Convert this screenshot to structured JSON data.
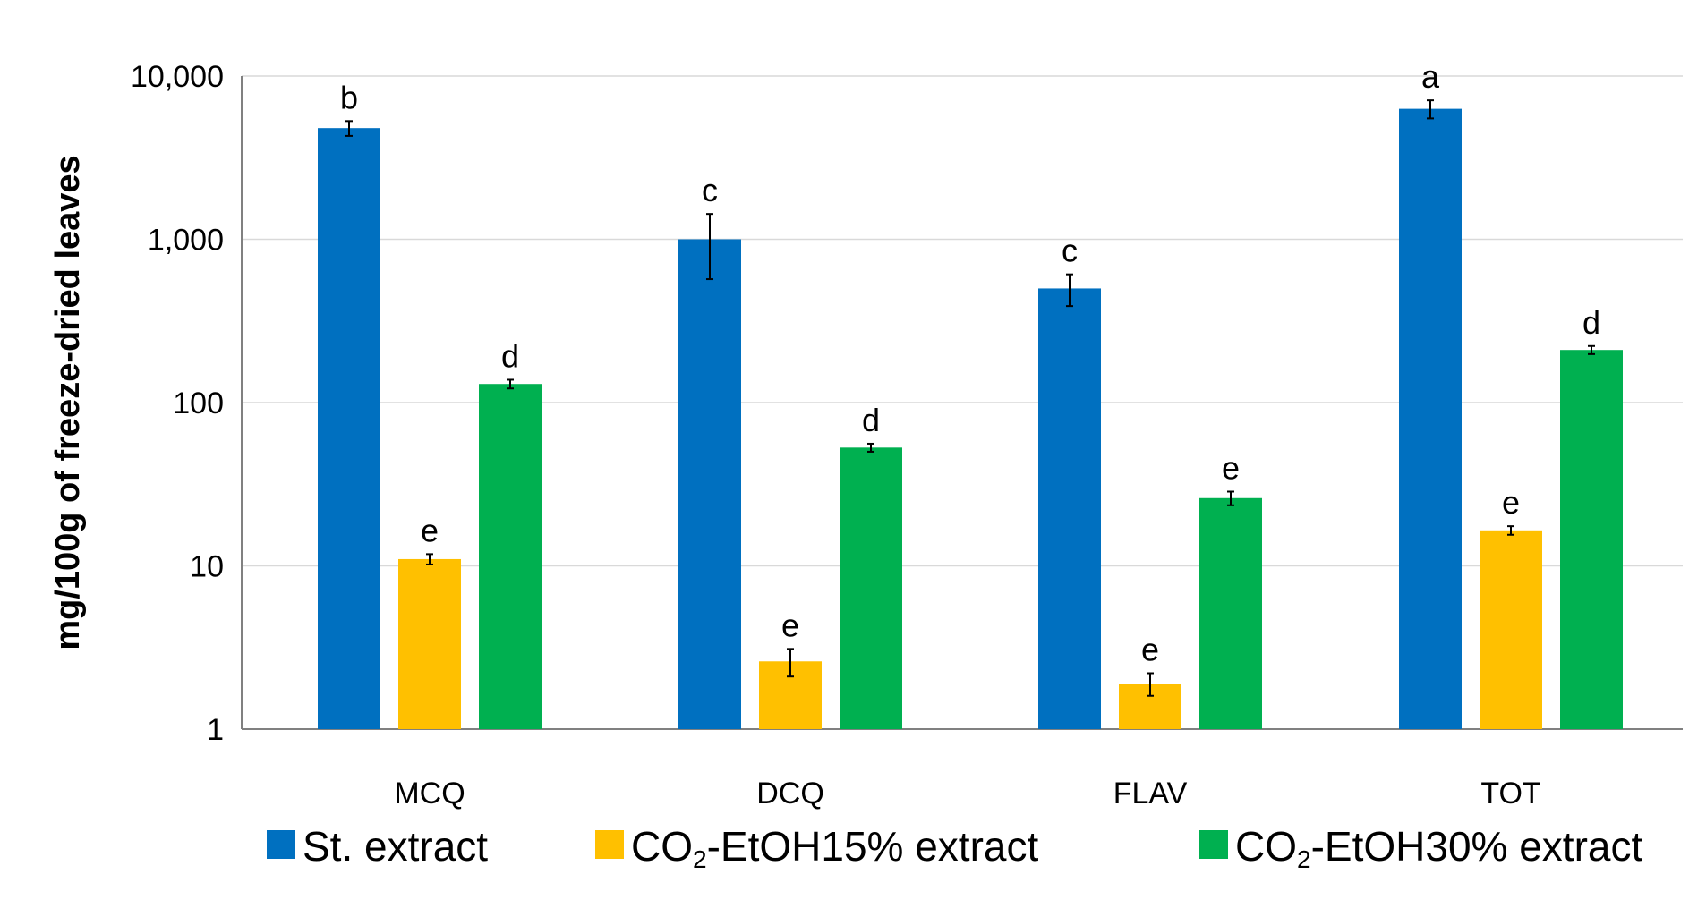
{
  "chart_data": {
    "type": "bar",
    "title": "",
    "xlabel": "",
    "ylabel": "mg/100g of freeze-dried leaves",
    "yscale": "log",
    "ylim": [
      1,
      10000
    ],
    "yticks": [
      1,
      10,
      100,
      1000,
      10000
    ],
    "ytick_labels": [
      "1",
      "10",
      "100",
      "1,000",
      "10,000"
    ],
    "grid": true,
    "legend_position": "bottom",
    "categories": [
      "MCQ",
      "DCQ",
      "FLAV",
      "TOT"
    ],
    "series": [
      {
        "name": "St. extract",
        "legend_parts": [
          "St. extract"
        ],
        "color": "#0070C0",
        "values": [
          4800,
          1000,
          500,
          6300
        ],
        "errors": [
          500,
          430,
          110,
          800
        ],
        "significance": [
          "b",
          "c",
          "c",
          "a"
        ]
      },
      {
        "name": "CO2-EtOH15% extract",
        "legend_parts": [
          "CO",
          "2",
          "-EtOH15% extract"
        ],
        "color": "#FFC000",
        "values": [
          11,
          2.6,
          1.9,
          16.5
        ],
        "errors": [
          0.8,
          0.5,
          0.3,
          1.0
        ],
        "significance": [
          "e",
          "e",
          "e",
          "e"
        ]
      },
      {
        "name": "CO2-EtOH30% extract",
        "legend_parts": [
          "CO",
          "2",
          "-EtOH30% extract"
        ],
        "color": "#00B050",
        "values": [
          130,
          53,
          26,
          210
        ],
        "errors": [
          8,
          3,
          2.5,
          12
        ],
        "significance": [
          "d",
          "d",
          "e",
          "d"
        ]
      }
    ]
  }
}
